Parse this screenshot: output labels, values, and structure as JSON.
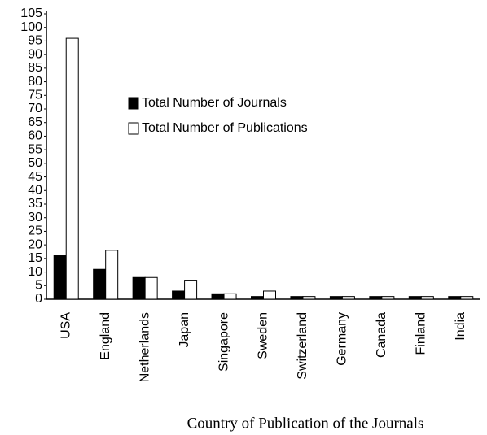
{
  "chart_data": {
    "type": "bar",
    "x_label": "Country of Publication of the Journals",
    "categories": [
      "USA",
      "England",
      "Netherlands",
      "Japan",
      "Singapore",
      "Sweden",
      "Switzerland",
      "Germany",
      "Canada",
      "Finland",
      "India"
    ],
    "series": [
      {
        "name": "Total Number of Journals",
        "color": "#000000",
        "values": [
          16,
          11,
          8,
          3,
          2,
          1,
          1,
          1,
          1,
          1,
          1
        ]
      },
      {
        "name": "Total Number of Publications",
        "color": "#ffffff",
        "values": [
          96,
          18,
          8,
          7,
          2,
          3,
          1,
          1,
          1,
          1,
          1
        ]
      }
    ],
    "ylim": [
      0,
      105
    ],
    "yticks": [
      0,
      5,
      10,
      15,
      20,
      25,
      30,
      35,
      40,
      45,
      50,
      55,
      60,
      65,
      70,
      75,
      80,
      85,
      90,
      95,
      100,
      105
    ],
    "grid": false,
    "legend": "upper-center"
  }
}
